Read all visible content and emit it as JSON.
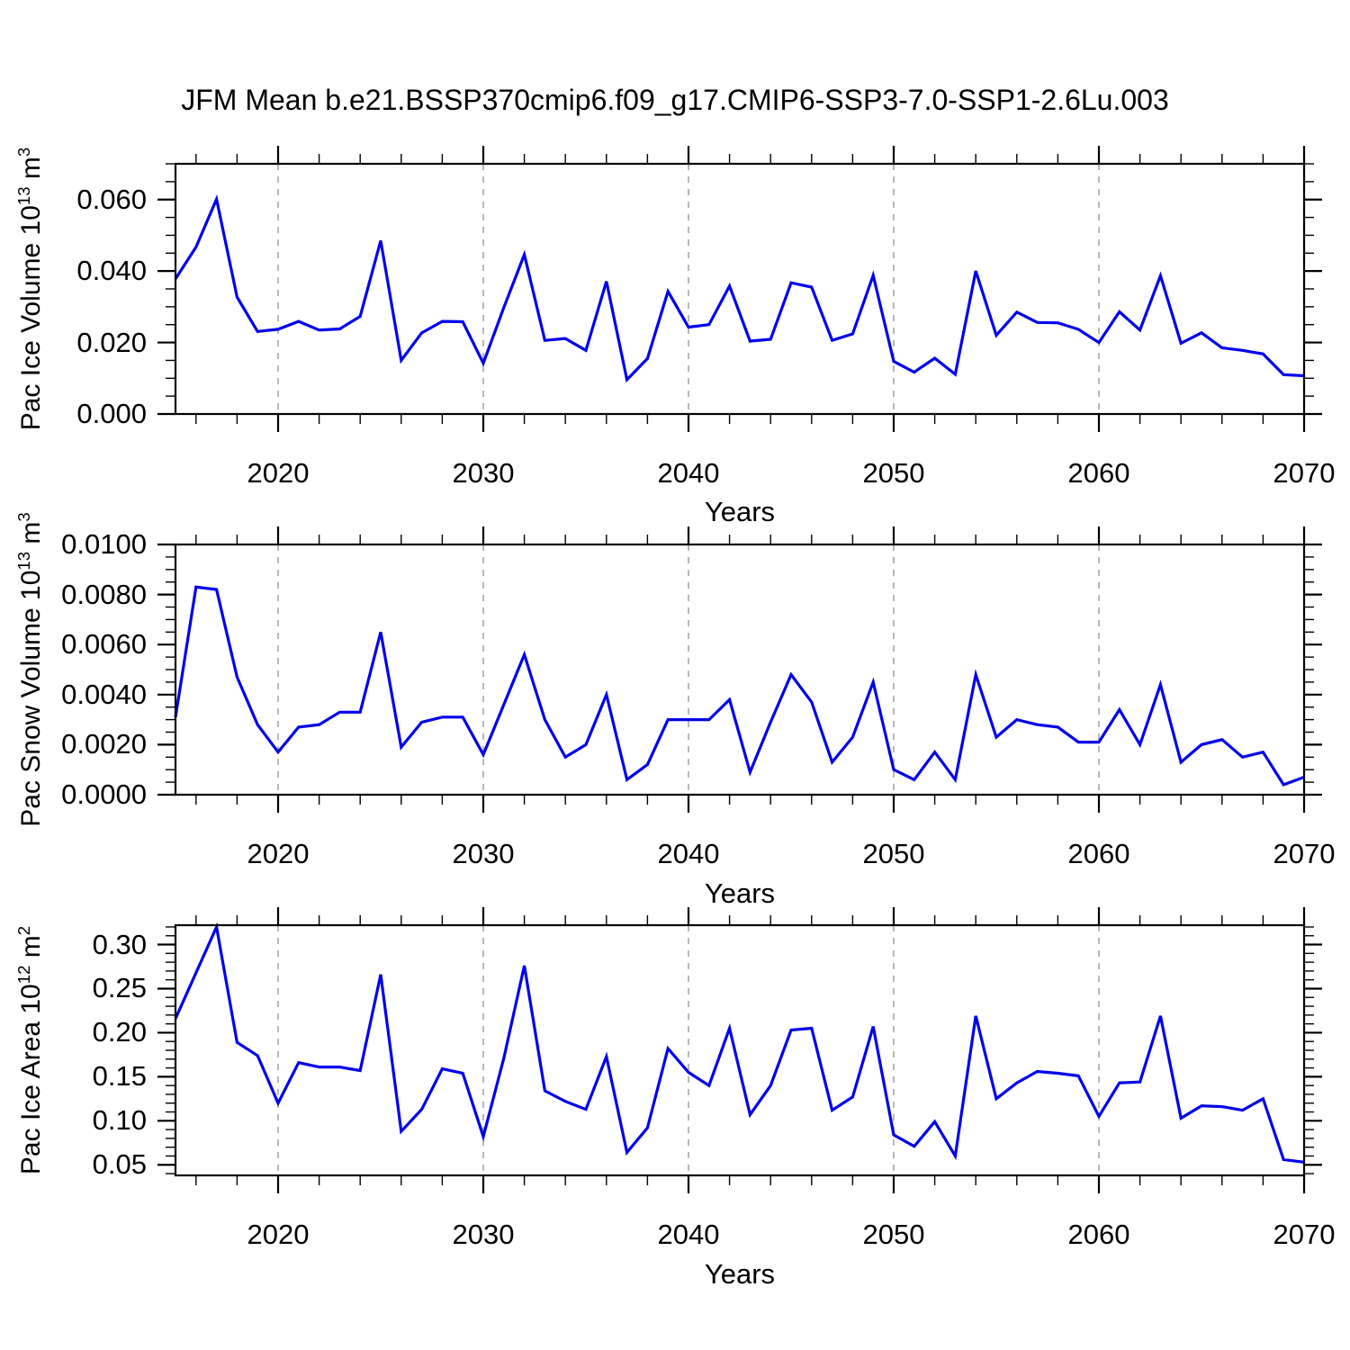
{
  "title": "JFM Mean b.e21.BSSP370cmip6.f09_g17.CMIP6-SSP3-7.0-SSP1-2.6Lu.003",
  "colors": {
    "series_line": "#0000ee",
    "frame": "#000000",
    "grid": "#999999",
    "text": "#000000"
  },
  "chart_data": {
    "type": "line",
    "x_label": "Years",
    "x_ticks": [
      2020,
      2030,
      2040,
      2050,
      2060,
      2070
    ],
    "x_minor_step": 2,
    "grid_years": [
      2020,
      2030,
      2040,
      2050,
      2060
    ],
    "xlim": [
      2015,
      2070
    ],
    "legend": "none",
    "years": [
      2015,
      2016,
      2017,
      2018,
      2019,
      2020,
      2021,
      2022,
      2023,
      2024,
      2025,
      2026,
      2027,
      2028,
      2029,
      2030,
      2031,
      2032,
      2033,
      2034,
      2035,
      2036,
      2037,
      2038,
      2039,
      2040,
      2041,
      2042,
      2043,
      2044,
      2045,
      2046,
      2047,
      2048,
      2049,
      2050,
      2051,
      2052,
      2053,
      2054,
      2055,
      2056,
      2057,
      2058,
      2059,
      2060,
      2061,
      2062,
      2063,
      2064,
      2065,
      2066,
      2067,
      2068,
      2069,
      2070
    ],
    "panels": [
      {
        "name": "pac-ice-volume",
        "ylabel": {
          "base": "Pac Ice Volume 10",
          "exp": "13",
          "unit": " m",
          "unit_exp": "3"
        },
        "ylim": [
          0,
          0.07
        ],
        "y_major_step": 0.02,
        "y_minor_step": 0.005,
        "yticks": [
          {
            "v": 0.0,
            "label": "0.000"
          },
          {
            "v": 0.02,
            "label": "0.020"
          },
          {
            "v": 0.04,
            "label": "0.040"
          },
          {
            "v": 0.06,
            "label": "0.060"
          }
        ],
        "values": [
          0.0378,
          0.0467,
          0.0601,
          0.0327,
          0.0231,
          0.0237,
          0.0259,
          0.0235,
          0.0238,
          0.0273,
          0.0485,
          0.015,
          0.0227,
          0.0259,
          0.0258,
          0.0142,
          0.0298,
          0.0446,
          0.0206,
          0.0211,
          0.0178,
          0.0371,
          0.0096,
          0.0155,
          0.0343,
          0.0243,
          0.025,
          0.0358,
          0.0204,
          0.0209,
          0.0367,
          0.0355,
          0.0206,
          0.0224,
          0.0388,
          0.0147,
          0.0117,
          0.0156,
          0.0111,
          0.04,
          0.022,
          0.0285,
          0.0256,
          0.0255,
          0.0237,
          0.02,
          0.0286,
          0.0235,
          0.0387,
          0.0198,
          0.0227,
          0.0185,
          0.0178,
          0.0168,
          0.011,
          0.0107
        ]
      },
      {
        "name": "pac-snow-volume",
        "ylabel": {
          "base": "Pac Snow Volume 10",
          "exp": "13",
          "unit": " m",
          "unit_exp": "3"
        },
        "ylim": [
          0,
          0.01
        ],
        "y_major_step": 0.002,
        "y_minor_step": 0.0005,
        "yticks": [
          {
            "v": 0.0,
            "label": "0.0000"
          },
          {
            "v": 0.002,
            "label": "0.0020"
          },
          {
            "v": 0.004,
            "label": "0.0040"
          },
          {
            "v": 0.006,
            "label": "0.0060"
          },
          {
            "v": 0.008,
            "label": "0.0080"
          },
          {
            "v": 0.01,
            "label": "0.0100"
          }
        ],
        "values": [
          0.0031,
          0.0083,
          0.0082,
          0.0047,
          0.0028,
          0.0017,
          0.0027,
          0.0028,
          0.0033,
          0.0033,
          0.0065,
          0.0019,
          0.0029,
          0.0031,
          0.0031,
          0.0016,
          0.0036,
          0.0056,
          0.003,
          0.0015,
          0.002,
          0.004,
          0.0006,
          0.0012,
          0.003,
          0.003,
          0.003,
          0.0038,
          0.0009,
          0.0029,
          0.0048,
          0.0037,
          0.0013,
          0.0023,
          0.0045,
          0.001,
          0.0006,
          0.0017,
          0.0006,
          0.0048,
          0.0023,
          0.003,
          0.0028,
          0.0027,
          0.0021,
          0.0021,
          0.0034,
          0.002,
          0.0044,
          0.0013,
          0.002,
          0.0022,
          0.0015,
          0.0017,
          0.0004,
          0.0007
        ]
      },
      {
        "name": "pac-ice-area",
        "ylabel": {
          "base": "Pac Ice Area 10",
          "exp": "12",
          "unit": " m",
          "unit_exp": "2"
        },
        "ylim": [
          0.038,
          0.322
        ],
        "y_major_step": 0.05,
        "y_minor_step": 0.01,
        "yticks": [
          {
            "v": 0.05,
            "label": "0.05"
          },
          {
            "v": 0.1,
            "label": "0.10"
          },
          {
            "v": 0.15,
            "label": "0.15"
          },
          {
            "v": 0.2,
            "label": "0.20"
          },
          {
            "v": 0.25,
            "label": "0.25"
          },
          {
            "v": 0.3,
            "label": "0.30"
          }
        ],
        "values": [
          0.216,
          0.268,
          0.32,
          0.189,
          0.174,
          0.12,
          0.166,
          0.161,
          0.161,
          0.157,
          0.266,
          0.088,
          0.113,
          0.159,
          0.154,
          0.082,
          0.171,
          0.276,
          0.134,
          0.122,
          0.113,
          0.173,
          0.064,
          0.092,
          0.182,
          0.155,
          0.14,
          0.205,
          0.107,
          0.14,
          0.203,
          0.205,
          0.112,
          0.127,
          0.207,
          0.084,
          0.071,
          0.099,
          0.06,
          0.219,
          0.125,
          0.143,
          0.156,
          0.154,
          0.151,
          0.105,
          0.143,
          0.144,
          0.219,
          0.103,
          0.117,
          0.116,
          0.112,
          0.125,
          0.056,
          0.053
        ]
      }
    ]
  }
}
